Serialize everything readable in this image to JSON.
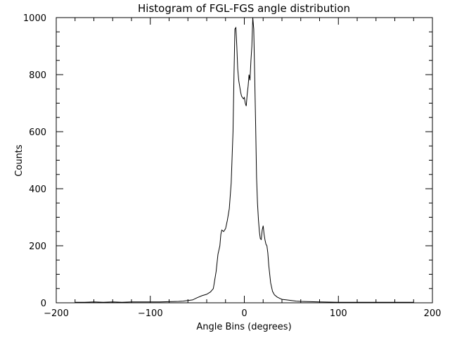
{
  "chart_data": {
    "type": "line",
    "title": "Histogram of FGL-FGS angle distribution",
    "xlabel": "Angle Bins (degrees)",
    "ylabel": "Counts",
    "xlim": [
      -200,
      200
    ],
    "ylim": [
      0,
      1000
    ],
    "xticks": [
      -200,
      -100,
      0,
      100,
      200
    ],
    "xtick_labels": [
      "−200",
      "−100",
      "0",
      "100",
      "200"
    ],
    "yticks": [
      0,
      200,
      400,
      600,
      800,
      1000
    ],
    "ytick_labels": [
      "0",
      "200",
      "400",
      "600",
      "800",
      "1000"
    ],
    "grid": false,
    "legend": "none",
    "series": [
      {
        "x": [
          -180,
          -170,
          -160,
          -150,
          -140,
          -130,
          -120,
          -110,
          -100,
          -90,
          -80,
          -70,
          -65,
          -60,
          -55,
          -50,
          -45,
          -40,
          -36,
          -33,
          -30,
          -28,
          -26,
          -25,
          -24,
          -22,
          -20,
          -18,
          -16,
          -14,
          -12,
          -11,
          -10,
          -9,
          -8,
          -7,
          -6,
          -5,
          -4,
          -3,
          -2,
          -1,
          0,
          1,
          2,
          3,
          4,
          5,
          6,
          7,
          8,
          9,
          10,
          11,
          12,
          13,
          14,
          15,
          16,
          17,
          18,
          19,
          20,
          21,
          22,
          23,
          24,
          25,
          26,
          28,
          30,
          32,
          35,
          38,
          40,
          45,
          50,
          55,
          60,
          70,
          80,
          100,
          120,
          140,
          160,
          180
        ],
        "y": [
          2,
          2,
          3,
          2,
          3,
          2,
          3,
          3,
          3,
          3,
          4,
          5,
          6,
          8,
          10,
          18,
          25,
          30,
          38,
          50,
          110,
          170,
          200,
          240,
          255,
          250,
          260,
          290,
          330,
          420,
          600,
          800,
          960,
          965,
          900,
          820,
          780,
          760,
          740,
          725,
          720,
          715,
          720,
          700,
          690,
          730,
          760,
          800,
          780,
          850,
          900,
          1000,
          960,
          800,
          620,
          440,
          350,
          290,
          250,
          225,
          222,
          255,
          270,
          240,
          220,
          205,
          200,
          175,
          130,
          70,
          40,
          28,
          20,
          15,
          12,
          10,
          8,
          6,
          5,
          4,
          3,
          2,
          2,
          2,
          2,
          2
        ]
      }
    ]
  }
}
